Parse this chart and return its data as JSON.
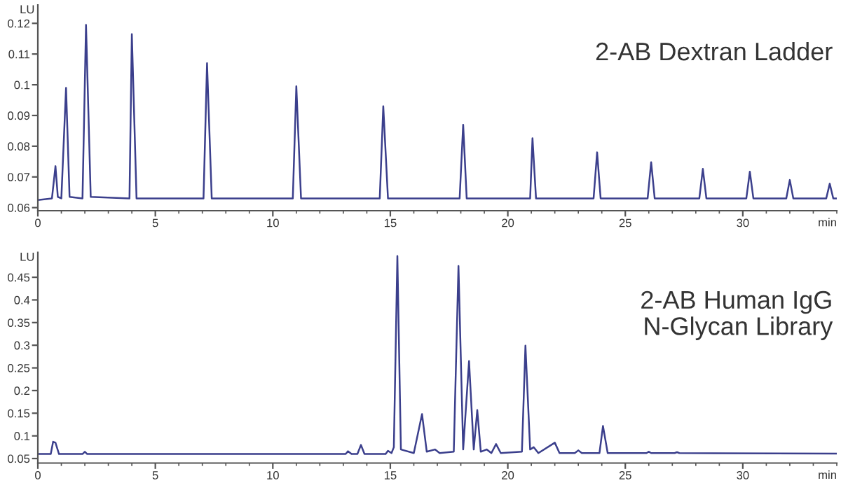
{
  "chart_data": [
    {
      "type": "line",
      "ylabel": "LU",
      "xlabel": "min",
      "annotations": [
        "2-AB Dextran Ladder"
      ],
      "xlim": [
        0,
        34
      ],
      "xticks": [
        0,
        5,
        10,
        15,
        20,
        25,
        30
      ],
      "ylim": [
        0.059,
        0.126
      ],
      "yticks": [
        0.06,
        0.07,
        0.08,
        0.09,
        0.1,
        0.11,
        0.12
      ],
      "grid": false,
      "legend": false,
      "series": [
        {
          "color": "#3b3f8c",
          "x": [
            0,
            0.6,
            0.75,
            0.85,
            1.0,
            1.2,
            1.35,
            1.9,
            2.05,
            2.25,
            3.9,
            4.0,
            4.2,
            7.05,
            7.2,
            7.4,
            10.85,
            11.0,
            11.2,
            14.55,
            14.7,
            14.9,
            17.95,
            18.1,
            18.25,
            20.95,
            21.05,
            21.2,
            23.65,
            23.8,
            23.95,
            25.95,
            26.1,
            26.25,
            28.15,
            28.3,
            28.45,
            30.15,
            30.3,
            30.45,
            31.85,
            32.0,
            32.15,
            33.55,
            33.7,
            33.85,
            34
          ],
          "values": [
            0.0625,
            0.063,
            0.0735,
            0.0635,
            0.063,
            0.099,
            0.0635,
            0.063,
            0.1195,
            0.0635,
            0.063,
            0.1165,
            0.063,
            0.063,
            0.107,
            0.063,
            0.063,
            0.0995,
            0.063,
            0.063,
            0.093,
            0.063,
            0.063,
            0.087,
            0.063,
            0.063,
            0.0826,
            0.063,
            0.063,
            0.078,
            0.063,
            0.063,
            0.0748,
            0.063,
            0.063,
            0.0726,
            0.063,
            0.063,
            0.0717,
            0.063,
            0.063,
            0.069,
            0.063,
            0.063,
            0.0678,
            0.063,
            0.063
          ]
        }
      ]
    },
    {
      "type": "line",
      "ylabel": "LU",
      "xlabel": "min",
      "annotations": [
        "2-AB Human IgG\nN-Glycan Library"
      ],
      "xlim": [
        0,
        34
      ],
      "xticks": [
        0,
        5,
        10,
        15,
        20,
        25,
        30
      ],
      "ylim": [
        0.04,
        0.505
      ],
      "yticks": [
        0.05,
        0.1,
        0.15,
        0.2,
        0.25,
        0.3,
        0.35,
        0.4,
        0.45
      ],
      "grid": false,
      "legend": false,
      "series": [
        {
          "color": "#3b3f8c",
          "x": [
            0,
            0.55,
            0.65,
            0.75,
            0.9,
            1.9,
            2.0,
            2.1,
            13.1,
            13.2,
            13.35,
            13.6,
            13.75,
            13.9,
            14.8,
            14.9,
            15.05,
            15.15,
            15.3,
            15.45,
            16.0,
            16.35,
            16.55,
            16.9,
            17.1,
            17.7,
            17.9,
            18.1,
            18.35,
            18.55,
            18.7,
            18.85,
            19.1,
            19.3,
            19.5,
            19.7,
            20.6,
            20.75,
            20.95,
            21.1,
            21.3,
            22.0,
            22.2,
            22.85,
            23.0,
            23.15,
            23.9,
            24.05,
            24.25,
            25.9,
            26.0,
            26.1,
            27.1,
            27.2,
            27.3,
            34
          ],
          "values": [
            0.06,
            0.06,
            0.087,
            0.085,
            0.06,
            0.06,
            0.065,
            0.06,
            0.06,
            0.066,
            0.06,
            0.06,
            0.08,
            0.06,
            0.06,
            0.067,
            0.062,
            0.075,
            0.497,
            0.07,
            0.062,
            0.148,
            0.065,
            0.07,
            0.062,
            0.065,
            0.475,
            0.07,
            0.265,
            0.07,
            0.157,
            0.065,
            0.07,
            0.062,
            0.082,
            0.062,
            0.065,
            0.299,
            0.07,
            0.075,
            0.062,
            0.085,
            0.062,
            0.062,
            0.068,
            0.062,
            0.062,
            0.122,
            0.062,
            0.062,
            0.065,
            0.062,
            0.062,
            0.064,
            0.062,
            0.061
          ]
        }
      ]
    }
  ]
}
